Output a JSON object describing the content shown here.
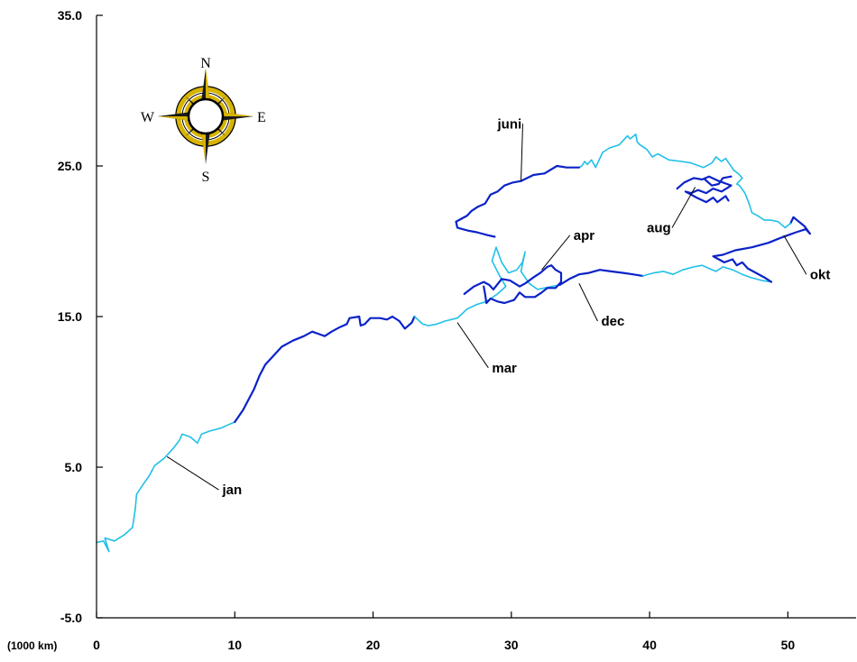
{
  "chart_data": {
    "type": "line",
    "title": "",
    "xlabel": "",
    "ylabel": "",
    "x_unit_label": "(1000 km)",
    "xlim": [
      0,
      55
    ],
    "ylim": [
      -5,
      35
    ],
    "x_ticks": [
      "0",
      "10",
      "20",
      "30",
      "40",
      "50"
    ],
    "x_tick_values": [
      0,
      10,
      20,
      30,
      40,
      50
    ],
    "y_ticks": [
      "35.0",
      "25.0",
      "15.0",
      "5.0",
      "-5.0"
    ],
    "y_tick_values": [
      35,
      25,
      15,
      5,
      -5
    ],
    "grid": false,
    "colors": {
      "light": "#1fc0e8",
      "dark": "#0a22c8",
      "axis": "#000000"
    },
    "compass": {
      "north": "N",
      "south": "S",
      "east": "E",
      "west": "W"
    },
    "annotations": [
      {
        "label": "jan",
        "x": 5.1,
        "y": 5.7,
        "text_x": 9.1,
        "text_y": 3.2
      },
      {
        "label": "mar",
        "x": 26.1,
        "y": 14.6,
        "text_x": 28.6,
        "text_y": 11.3
      },
      {
        "label": "apr",
        "x": 32.2,
        "y": 18.1,
        "text_x": 34.5,
        "text_y": 20.1
      },
      {
        "label": "juni",
        "x": 30.7,
        "y": 24.0,
        "text_x": 29.0,
        "text_y": 27.5
      },
      {
        "label": "aug",
        "x": 43.3,
        "y": 23.6,
        "text_x": 39.8,
        "text_y": 20.6
      },
      {
        "label": "okt",
        "x": 49.7,
        "y": 20.4,
        "text_x": 51.6,
        "text_y": 17.5
      },
      {
        "label": "dec",
        "x": 34.9,
        "y": 17.2,
        "text_x": 36.5,
        "text_y": 14.4
      }
    ],
    "series": [
      {
        "color": "light",
        "points": [
          [
            0,
            0
          ],
          [
            0.5,
            0.1
          ],
          [
            0.9,
            -0.6
          ],
          [
            0.6,
            0.3
          ],
          [
            1.3,
            0.1
          ],
          [
            2.0,
            0.5
          ],
          [
            2.6,
            1.0
          ],
          [
            2.8,
            2.2
          ],
          [
            2.9,
            3.2
          ],
          [
            3.4,
            3.9
          ],
          [
            3.8,
            4.4
          ],
          [
            4.2,
            5.1
          ],
          [
            4.9,
            5.6
          ],
          [
            5.6,
            6.3
          ],
          [
            6.0,
            6.8
          ],
          [
            6.2,
            7.2
          ],
          [
            6.8,
            7.0
          ],
          [
            7.3,
            6.6
          ],
          [
            7.6,
            7.2
          ],
          [
            8.2,
            7.4
          ],
          [
            9.0,
            7.6
          ],
          [
            9.5,
            7.8
          ],
          [
            10.0,
            8.0
          ]
        ]
      },
      {
        "color": "dark",
        "points": [
          [
            10.0,
            8.0
          ],
          [
            10.6,
            8.8
          ],
          [
            11.0,
            9.5
          ],
          [
            11.4,
            10.2
          ],
          [
            11.8,
            11.1
          ],
          [
            12.2,
            11.8
          ],
          [
            12.6,
            12.2
          ],
          [
            13.4,
            13.0
          ],
          [
            14.2,
            13.4
          ],
          [
            15.0,
            13.7
          ],
          [
            15.6,
            14.0
          ],
          [
            16.2,
            13.8
          ],
          [
            16.5,
            13.7
          ],
          [
            17.0,
            14.0
          ],
          [
            17.6,
            14.3
          ],
          [
            18.1,
            14.5
          ],
          [
            18.3,
            14.9
          ],
          [
            19.0,
            15.0
          ],
          [
            19.1,
            14.4
          ],
          [
            19.4,
            14.5
          ],
          [
            19.8,
            14.9
          ],
          [
            20.5,
            14.9
          ],
          [
            21.0,
            14.8
          ],
          [
            21.4,
            15.0
          ],
          [
            21.9,
            14.7
          ],
          [
            22.3,
            14.2
          ],
          [
            22.8,
            14.6
          ],
          [
            23.0,
            15.0
          ]
        ]
      },
      {
        "color": "light",
        "points": [
          [
            23.0,
            15.0
          ],
          [
            23.6,
            14.5
          ],
          [
            24.0,
            14.4
          ],
          [
            24.6,
            14.5
          ],
          [
            25.2,
            14.7
          ],
          [
            26.1,
            14.9
          ],
          [
            26.8,
            15.5
          ],
          [
            27.5,
            15.8
          ],
          [
            28.2,
            16.0
          ],
          [
            29.0,
            16.5
          ],
          [
            29.6,
            17.0
          ],
          [
            29.1,
            17.8
          ],
          [
            28.6,
            18.7
          ],
          [
            28.9,
            19.6
          ],
          [
            29.3,
            18.6
          ],
          [
            29.8,
            17.9
          ],
          [
            30.4,
            18.1
          ],
          [
            30.8,
            18.6
          ],
          [
            31.0,
            19.3
          ],
          [
            30.7,
            18.0
          ],
          [
            31.3,
            17.2
          ],
          [
            31.9,
            16.8
          ],
          [
            32.4,
            16.9
          ],
          [
            32.9,
            17.0
          ],
          [
            33.5,
            17.1
          ]
        ]
      },
      {
        "color": "dark",
        "points": [
          [
            33.5,
            17.1
          ],
          [
            34.2,
            17.5
          ],
          [
            34.9,
            17.8
          ],
          [
            35.6,
            17.9
          ],
          [
            36.4,
            18.1
          ],
          [
            37.2,
            18.0
          ],
          [
            38.1,
            17.9
          ],
          [
            38.8,
            17.8
          ],
          [
            39.5,
            17.7
          ]
        ]
      },
      {
        "color": "light",
        "points": [
          [
            39.5,
            17.7
          ],
          [
            40.3,
            17.9
          ],
          [
            41.0,
            18.0
          ],
          [
            41.7,
            17.8
          ],
          [
            42.4,
            18.1
          ],
          [
            43.2,
            18.3
          ],
          [
            43.8,
            18.4
          ],
          [
            44.3,
            18.2
          ],
          [
            44.8,
            18.0
          ],
          [
            45.3,
            18.3
          ],
          [
            46.0,
            18.1
          ],
          [
            46.7,
            17.8
          ],
          [
            47.3,
            17.6
          ],
          [
            48.1,
            17.4
          ],
          [
            48.8,
            17.3
          ]
        ]
      },
      {
        "color": "dark",
        "points": [
          [
            48.8,
            17.3
          ],
          [
            48.3,
            17.6
          ],
          [
            47.7,
            17.9
          ],
          [
            47.1,
            18.2
          ],
          [
            46.7,
            18.6
          ],
          [
            46.3,
            18.4
          ],
          [
            46.0,
            18.8
          ],
          [
            45.4,
            18.6
          ],
          [
            44.8,
            18.9
          ],
          [
            44.6,
            19.0
          ],
          [
            45.3,
            19.1
          ],
          [
            46.2,
            19.4
          ],
          [
            47.4,
            19.6
          ],
          [
            48.6,
            19.9
          ],
          [
            49.4,
            20.2
          ],
          [
            50.0,
            20.4
          ],
          [
            50.6,
            20.6
          ],
          [
            51.3,
            20.8
          ],
          [
            51.6,
            20.5
          ],
          [
            51.2,
            21.0
          ],
          [
            50.8,
            21.3
          ],
          [
            50.4,
            21.6
          ],
          [
            50.2,
            21.2
          ]
        ]
      },
      {
        "color": "light",
        "points": [
          [
            50.2,
            21.2
          ],
          [
            49.8,
            20.9
          ],
          [
            49.3,
            21.3
          ],
          [
            48.8,
            21.4
          ],
          [
            48.3,
            21.4
          ],
          [
            47.8,
            21.7
          ],
          [
            47.4,
            21.9
          ],
          [
            47.2,
            22.5
          ],
          [
            46.9,
            23.2
          ],
          [
            46.5,
            23.7
          ],
          [
            46.3,
            23.8
          ],
          [
            46.7,
            24.2
          ],
          [
            46.4,
            24.5
          ],
          [
            46.1,
            24.7
          ],
          [
            45.8,
            25.1
          ],
          [
            45.5,
            25.5
          ],
          [
            45.2,
            25.3
          ],
          [
            44.8,
            25.6
          ],
          [
            44.5,
            25.2
          ],
          [
            43.9,
            24.9
          ],
          [
            43.0,
            25.2
          ],
          [
            42.3,
            25.3
          ],
          [
            41.4,
            25.4
          ],
          [
            40.6,
            25.8
          ],
          [
            40.2,
            25.6
          ],
          [
            39.8,
            26.1
          ],
          [
            39.3,
            26.4
          ],
          [
            39.1,
            26.6
          ],
          [
            39.0,
            27.1
          ],
          [
            38.6,
            26.8
          ],
          [
            38.4,
            27.0
          ],
          [
            37.8,
            26.4
          ],
          [
            37.1,
            26.2
          ],
          [
            36.6,
            25.9
          ],
          [
            36.4,
            25.5
          ],
          [
            36.1,
            24.9
          ],
          [
            35.8,
            25.4
          ],
          [
            35.5,
            25.1
          ],
          [
            35.3,
            25.3
          ],
          [
            35.1,
            25.0
          ],
          [
            34.9,
            24.9
          ]
        ]
      },
      {
        "color": "dark",
        "points": [
          [
            34.9,
            24.9
          ],
          [
            34.0,
            24.9
          ],
          [
            33.3,
            25.0
          ],
          [
            32.4,
            24.5
          ],
          [
            31.6,
            24.4
          ],
          [
            30.7,
            24.0
          ],
          [
            30.1,
            23.9
          ],
          [
            29.5,
            23.7
          ],
          [
            29.0,
            23.3
          ],
          [
            28.5,
            23.1
          ],
          [
            28.1,
            22.5
          ],
          [
            27.6,
            22.3
          ],
          [
            27.1,
            22.0
          ],
          [
            26.8,
            21.7
          ],
          [
            26.0,
            21.3
          ],
          [
            26.1,
            20.9
          ],
          [
            26.9,
            20.7
          ],
          [
            27.5,
            20.6
          ],
          [
            28.3,
            20.4
          ],
          [
            28.8,
            20.3
          ]
        ]
      },
      {
        "color": "dark",
        "points": [
          [
            26.6,
            16.5
          ],
          [
            27.3,
            17.0
          ],
          [
            28.0,
            17.3
          ],
          [
            28.4,
            17.1
          ],
          [
            28.7,
            16.8
          ],
          [
            29.3,
            17.5
          ],
          [
            29.9,
            17.4
          ],
          [
            30.6,
            17.0
          ],
          [
            31.0,
            17.2
          ],
          [
            31.6,
            17.6
          ],
          [
            32.1,
            17.9
          ],
          [
            32.6,
            18.3
          ],
          [
            32.9,
            18.4
          ],
          [
            33.2,
            18.1
          ],
          [
            33.6,
            17.9
          ],
          [
            33.6,
            17.3
          ],
          [
            33.2,
            16.9
          ],
          [
            32.6,
            16.9
          ],
          [
            32.2,
            16.6
          ],
          [
            31.7,
            16.3
          ],
          [
            31.0,
            16.3
          ],
          [
            30.6,
            16.6
          ],
          [
            30.2,
            16.1
          ],
          [
            29.5,
            15.9
          ],
          [
            29.0,
            16.0
          ],
          [
            28.5,
            16.2
          ],
          [
            28.2,
            15.9
          ],
          [
            28.1,
            16.5
          ],
          [
            28.0,
            17.0
          ]
        ]
      },
      {
        "color": "dark",
        "points": [
          [
            42.0,
            23.5
          ],
          [
            42.5,
            23.9
          ],
          [
            43.2,
            24.2
          ],
          [
            43.8,
            24.1
          ],
          [
            44.3,
            24.3
          ],
          [
            45.0,
            24.0
          ],
          [
            45.6,
            23.8
          ],
          [
            45.9,
            23.7
          ],
          [
            45.2,
            23.3
          ],
          [
            44.6,
            23.5
          ],
          [
            44.1,
            23.2
          ],
          [
            43.5,
            23.4
          ],
          [
            43.0,
            23.2
          ],
          [
            42.6,
            23.3
          ],
          [
            43.4,
            22.9
          ],
          [
            44.1,
            22.6
          ],
          [
            44.6,
            22.9
          ],
          [
            44.9,
            22.6
          ],
          [
            45.5,
            23.0
          ],
          [
            45.7,
            22.7
          ]
        ]
      },
      {
        "color": "dark",
        "points": [
          [
            45.9,
            24.3
          ],
          [
            45.3,
            24.2
          ],
          [
            45.0,
            23.8
          ],
          [
            44.5,
            23.7
          ],
          [
            44.0,
            24.1
          ]
        ]
      }
    ]
  }
}
